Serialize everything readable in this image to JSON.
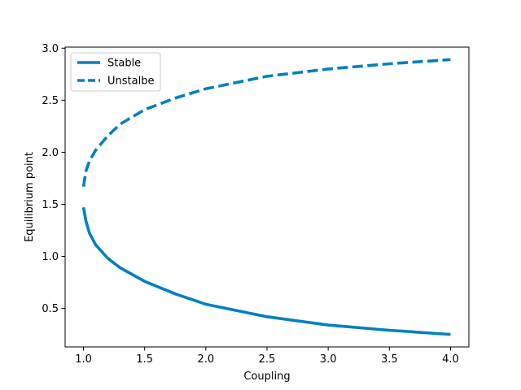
{
  "chart_data": {
    "type": "line",
    "title": "",
    "xlabel": "Coupling",
    "ylabel": "Equilibrium point",
    "xlim": [
      0.85,
      4.15
    ],
    "ylim": [
      0.13,
      3.01
    ],
    "xticks": [
      1.0,
      1.5,
      2.0,
      2.5,
      3.0,
      3.5,
      4.0
    ],
    "xtick_labels": [
      "1.0",
      "1.5",
      "2.0",
      "2.5",
      "3.0",
      "3.5",
      "4.0"
    ],
    "yticks": [
      0.5,
      1.0,
      1.5,
      2.0,
      2.5,
      3.0
    ],
    "ytick_labels": [
      "0.5",
      "1.0",
      "1.5",
      "2.0",
      "2.5",
      "3.0"
    ],
    "grid": false,
    "legend_position": "top-left",
    "series": [
      {
        "name": "Stable",
        "color": "#0080c0",
        "style": "solid",
        "x": [
          1.0,
          1.02,
          1.05,
          1.1,
          1.2,
          1.3,
          1.5,
          1.75,
          2.0,
          2.5,
          3.0,
          3.5,
          4.0
        ],
        "y": [
          1.47,
          1.34,
          1.22,
          1.11,
          0.98,
          0.89,
          0.76,
          0.64,
          0.54,
          0.42,
          0.34,
          0.29,
          0.25
        ]
      },
      {
        "name": "Unstalbe",
        "color": "#0080c0",
        "style": "dashed",
        "x": [
          1.0,
          1.02,
          1.05,
          1.1,
          1.2,
          1.3,
          1.5,
          1.75,
          2.0,
          2.5,
          3.0,
          3.5,
          4.0
        ],
        "y": [
          1.67,
          1.82,
          1.92,
          2.02,
          2.16,
          2.27,
          2.41,
          2.52,
          2.61,
          2.73,
          2.8,
          2.85,
          2.89
        ]
      }
    ]
  }
}
